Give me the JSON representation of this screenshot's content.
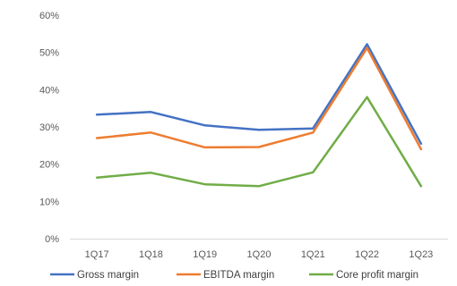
{
  "chart_data": {
    "type": "line",
    "title": "",
    "xlabel": "",
    "ylabel": "",
    "categories": [
      "1Q17",
      "1Q18",
      "1Q19",
      "1Q20",
      "1Q21",
      "1Q22",
      "1Q23"
    ],
    "ylim": [
      0,
      60
    ],
    "yticks": [
      "0%",
      "10%",
      "20%",
      "30%",
      "40%",
      "50%",
      "60%"
    ],
    "grid": false,
    "legend_position": "bottom",
    "series": [
      {
        "name": "Gross margin",
        "color": "#4472C4",
        "values": [
          33.3,
          34.0,
          30.4,
          29.2,
          29.6,
          52.2,
          25.5
        ]
      },
      {
        "name": "EBITDA margin",
        "color": "#ED7D31",
        "values": [
          27.0,
          28.5,
          24.5,
          24.6,
          28.5,
          51.2,
          24.0
        ]
      },
      {
        "name": "Core profit margin",
        "color": "#70AD47",
        "values": [
          16.4,
          17.7,
          14.6,
          14.1,
          17.8,
          38.0,
          14.1
        ]
      }
    ]
  }
}
